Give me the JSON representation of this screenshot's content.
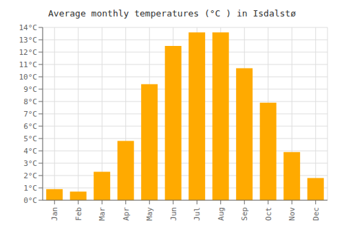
{
  "chart_data": {
    "type": "bar",
    "title": "Average monthly temperatures (°C ) in Isdalstø",
    "categories": [
      "Jan",
      "Feb",
      "Mar",
      "Apr",
      "May",
      "Jun",
      "Jul",
      "Aug",
      "Sep",
      "Oct",
      "Nov",
      "Dec"
    ],
    "values": [
      0.9,
      0.7,
      2.3,
      4.8,
      9.4,
      12.5,
      13.6,
      13.6,
      10.7,
      7.9,
      3.9,
      1.8
    ],
    "color": "#FFAA00",
    "ylim": [
      0,
      14
    ],
    "yticks": [
      {
        "value": 0,
        "label": "0°C"
      },
      {
        "value": 1,
        "label": "1°C"
      },
      {
        "value": 2,
        "label": "2°C"
      },
      {
        "value": 3,
        "label": "3°C"
      },
      {
        "value": 4,
        "label": "4°C"
      },
      {
        "value": 5,
        "label": "5°C"
      },
      {
        "value": 6,
        "label": "6°C"
      },
      {
        "value": 7,
        "label": "7°C"
      },
      {
        "value": 8,
        "label": "8°C"
      },
      {
        "value": 9,
        "label": "9°C"
      },
      {
        "value": 10,
        "label": "10°C"
      },
      {
        "value": 11,
        "label": "11°C"
      },
      {
        "value": 12,
        "label": "12°C"
      },
      {
        "value": 13,
        "label": "13°C"
      },
      {
        "value": 14,
        "label": "14°C"
      }
    ],
    "grid": true
  }
}
